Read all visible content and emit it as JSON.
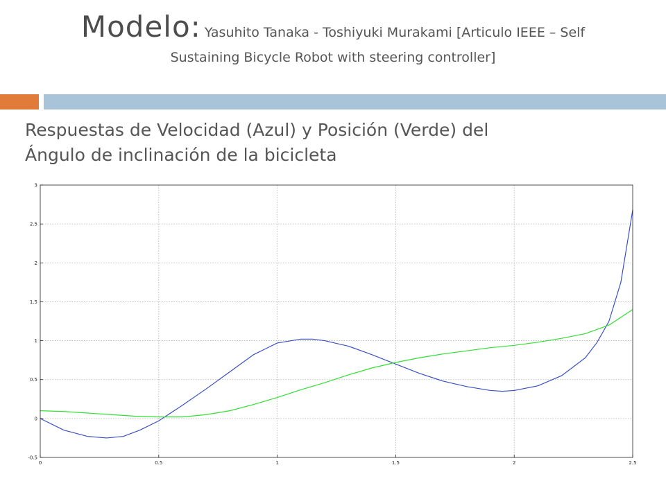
{
  "slide": {
    "title_main": "Modelo:",
    "title_sub_line1": "Yasuhito Tanaka - Toshiyuki Murakami [Articulo IEEE – Self",
    "title_sub_line2": "Sustaining Bicycle Robot with steering controller]",
    "subtitle_line1": "Respuestas de Velocidad (Azul) y Posición (Verde) del",
    "subtitle_line2": "Ángulo de inclinación de la bicicleta",
    "accent_colors": {
      "orange": "#e07b39",
      "blue": "#a9c3d9"
    }
  },
  "chart_data": {
    "type": "line",
    "title": "",
    "xlabel": "",
    "ylabel": "",
    "xlim": [
      0,
      2.5
    ],
    "ylim": [
      -0.5,
      3
    ],
    "grid": true,
    "legend": "none",
    "x_ticks": [
      "0",
      "0.5",
      "1",
      "1.5",
      "2",
      "2.5"
    ],
    "y_ticks": [
      "-0.5",
      "0",
      "0.5",
      "1",
      "1.5",
      "2",
      "2.5",
      "3"
    ],
    "x_tick_values": [
      0,
      0.5,
      1,
      1.5,
      2,
      2.5
    ],
    "y_tick_values": [
      -0.5,
      0,
      0.5,
      1,
      1.5,
      2,
      2.5,
      3
    ],
    "series": [
      {
        "color": "#3a4fc4",
        "x": [
          0,
          0.1,
          0.2,
          0.28,
          0.35,
          0.42,
          0.5,
          0.6,
          0.7,
          0.8,
          0.9,
          1.0,
          1.1,
          1.15,
          1.2,
          1.3,
          1.4,
          1.5,
          1.6,
          1.7,
          1.8,
          1.9,
          1.95,
          2.0,
          2.1,
          2.2,
          2.3,
          2.35,
          2.4,
          2.45,
          2.5
        ],
        "y": [
          0.0,
          -0.15,
          -0.23,
          -0.25,
          -0.23,
          -0.15,
          -0.03,
          0.17,
          0.38,
          0.6,
          0.82,
          0.97,
          1.02,
          1.02,
          1.0,
          0.93,
          0.82,
          0.7,
          0.58,
          0.48,
          0.41,
          0.36,
          0.35,
          0.36,
          0.42,
          0.55,
          0.78,
          0.98,
          1.25,
          1.75,
          2.68
        ]
      },
      {
        "color": "#33dd33",
        "x": [
          0,
          0.1,
          0.2,
          0.3,
          0.4,
          0.5,
          0.55,
          0.6,
          0.7,
          0.8,
          0.9,
          1.0,
          1.1,
          1.2,
          1.3,
          1.4,
          1.5,
          1.6,
          1.7,
          1.8,
          1.9,
          2.0,
          2.1,
          2.2,
          2.3,
          2.4,
          2.5
        ],
        "y": [
          0.1,
          0.09,
          0.07,
          0.05,
          0.03,
          0.02,
          0.02,
          0.02,
          0.05,
          0.1,
          0.18,
          0.27,
          0.37,
          0.46,
          0.56,
          0.65,
          0.72,
          0.78,
          0.83,
          0.87,
          0.91,
          0.94,
          0.98,
          1.03,
          1.09,
          1.2,
          1.4
        ]
      }
    ]
  }
}
